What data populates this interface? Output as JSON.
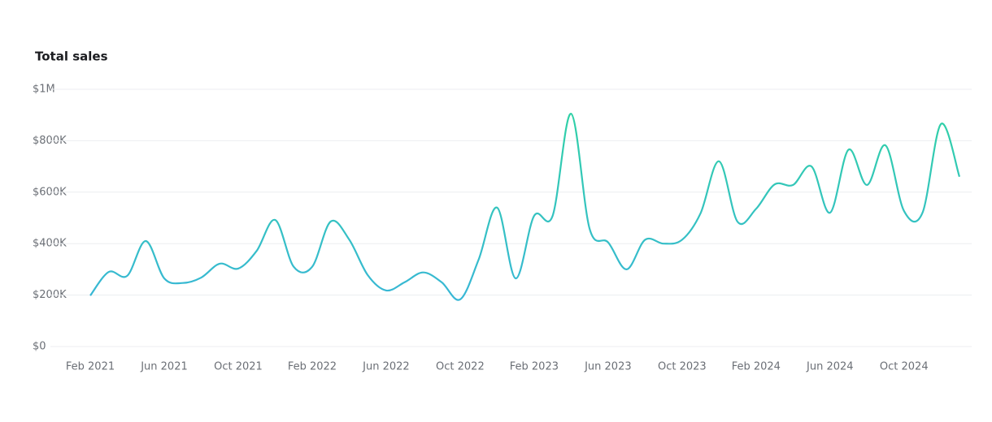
{
  "chart_data": {
    "type": "line",
    "title": "Total sales",
    "x": [
      "2021-02",
      "2021-03",
      "2021-04",
      "2021-05",
      "2021-06",
      "2021-07",
      "2021-08",
      "2021-09",
      "2021-10",
      "2021-11",
      "2021-12",
      "2022-01",
      "2022-02",
      "2022-03",
      "2022-04",
      "2022-05",
      "2022-06",
      "2022-07",
      "2022-08",
      "2022-09",
      "2022-10",
      "2022-11",
      "2022-12",
      "2023-01",
      "2023-02",
      "2023-03",
      "2023-04",
      "2023-05",
      "2023-06",
      "2023-07",
      "2023-08",
      "2023-09",
      "2023-10",
      "2023-11",
      "2023-12",
      "2024-01",
      "2024-02",
      "2024-03",
      "2024-04",
      "2024-05",
      "2024-06",
      "2024-07",
      "2024-08",
      "2024-09",
      "2024-10",
      "2024-11",
      "2024-12",
      "2025-01"
    ],
    "values": [
      198000,
      290000,
      275000,
      410000,
      265000,
      247000,
      268000,
      322000,
      303000,
      372000,
      492000,
      310000,
      310000,
      486000,
      416000,
      278000,
      218000,
      250000,
      288000,
      250000,
      183000,
      338000,
      540000,
      265000,
      508000,
      508000,
      905000,
      458000,
      405000,
      300000,
      415000,
      400000,
      415000,
      518000,
      720000,
      485000,
      535000,
      630000,
      628000,
      700000,
      520000,
      765000,
      628000,
      782000,
      527000,
      520000,
      865000,
      660000
    ],
    "color_gradient": [
      "#3ab0e2",
      "#2fd4a0"
    ],
    "xlim": [
      "2021-02",
      "2025-01"
    ],
    "xticks": [
      {
        "value": "2021-02",
        "label": "Feb 2021"
      },
      {
        "value": "2021-06",
        "label": "Jun 2021"
      },
      {
        "value": "2021-10",
        "label": "Oct 2021"
      },
      {
        "value": "2022-02",
        "label": "Feb 2022"
      },
      {
        "value": "2022-06",
        "label": "Jun 2022"
      },
      {
        "value": "2022-10",
        "label": "Oct 2022"
      },
      {
        "value": "2023-02",
        "label": "Feb 2023"
      },
      {
        "value": "2023-06",
        "label": "Jun 2023"
      },
      {
        "value": "2023-10",
        "label": "Oct 2023"
      },
      {
        "value": "2024-02",
        "label": "Feb 2024"
      },
      {
        "value": "2024-06",
        "label": "Jun 2024"
      },
      {
        "value": "2024-10",
        "label": "Oct 2024"
      }
    ],
    "ylim": [
      0,
      1000000
    ],
    "yticks": [
      {
        "value": 0,
        "label": "$0"
      },
      {
        "value": 200000,
        "label": "$200K"
      },
      {
        "value": 400000,
        "label": "$400K"
      },
      {
        "value": 600000,
        "label": "$600K"
      },
      {
        "value": 800000,
        "label": "$800K"
      },
      {
        "value": 1000000,
        "label": "$1M"
      }
    ],
    "grid": true
  }
}
